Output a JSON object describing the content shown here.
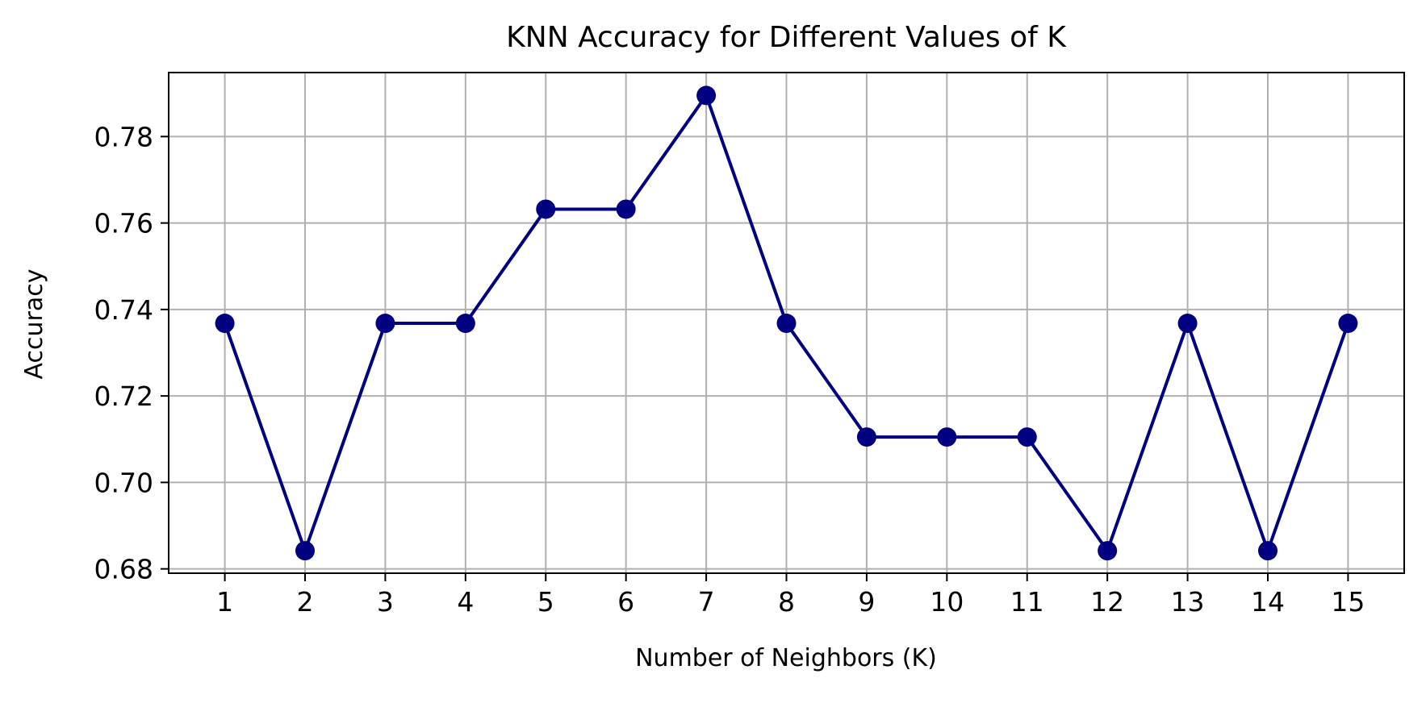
{
  "chart_data": {
    "type": "line",
    "title": "KNN Accuracy for Different Values of K",
    "xlabel": "Number of Neighbors (K)",
    "ylabel": "Accuracy",
    "x": [
      1,
      2,
      3,
      4,
      5,
      6,
      7,
      8,
      9,
      10,
      11,
      12,
      13,
      14,
      15
    ],
    "series": [
      {
        "values": [
          0.7368,
          0.6842,
          0.7368,
          0.7368,
          0.7632,
          0.7632,
          0.7895,
          0.7368,
          0.7105,
          0.7105,
          0.7105,
          0.6842,
          0.7368,
          0.6842,
          0.7368
        ],
        "color": "#000080",
        "marker": "circle"
      }
    ],
    "xlim": [
      0.3,
      15.7
    ],
    "ylim": [
      0.679,
      0.7948
    ],
    "xticks": [
      "1",
      "2",
      "3",
      "4",
      "5",
      "6",
      "7",
      "8",
      "9",
      "10",
      "11",
      "12",
      "13",
      "14",
      "15"
    ],
    "yticks": [
      "0.68",
      "0.70",
      "0.72",
      "0.74",
      "0.76",
      "0.78"
    ],
    "grid": true,
    "grid_color": "#b0b0b0"
  }
}
